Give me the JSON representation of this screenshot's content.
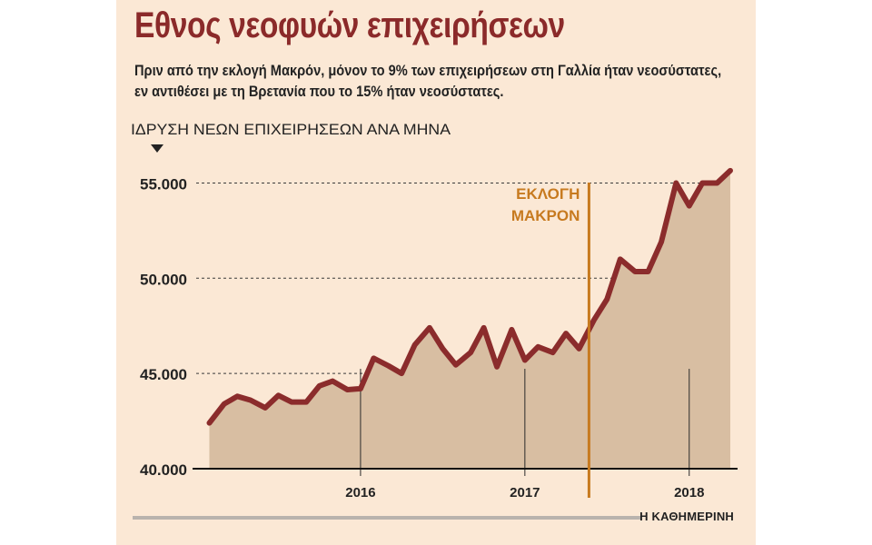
{
  "header": {
    "title": "Εθνος νεοφυών επιχειρήσεων",
    "subtitle": "Πριν από την εκλογή Μακρόν, μόνον το 9% των επιχειρήσεων στη Γαλλία ήταν νεοσύστατες, εν αντιθέσει με τη Βρετανία που το 15% ήταν νεοσύστατες."
  },
  "footer": {
    "source": "Η ΚΑΘΗΜΕΡΙΝΗ"
  },
  "colors": {
    "background": "#fbe8d5",
    "line": "#8b2c2c",
    "area": "#d8bea2",
    "marker": "#c77a1f",
    "title": "#8b2a2a"
  },
  "chart_data": {
    "type": "area",
    "ylabel": "ΙΔΡΥΣΗ ΝΕΩΝ ΕΠΙΧΕΙΡΗΣΕΩΝ ΑΝΑ ΜΗΝΑ",
    "ylim": [
      40000,
      56500
    ],
    "yticks": [
      40000,
      45000,
      50000,
      55000
    ],
    "ytick_labels": [
      "40.000",
      "45.000",
      "50.000",
      "55.000"
    ],
    "xlim": [
      2015.0,
      2018.25
    ],
    "xticks": [
      2016,
      2017,
      2018
    ],
    "xtick_labels": [
      "2016",
      "2017",
      "2018"
    ],
    "grid": "dashed horizontal",
    "x": [
      2015.08,
      2015.17,
      2015.25,
      2015.33,
      2015.42,
      2015.5,
      2015.58,
      2015.67,
      2015.75,
      2015.83,
      2015.92,
      2016.0,
      2016.08,
      2016.17,
      2016.25,
      2016.33,
      2016.42,
      2016.5,
      2016.58,
      2016.67,
      2016.75,
      2016.83,
      2016.92,
      2017.0,
      2017.08,
      2017.17,
      2017.25,
      2017.33,
      2017.42,
      2017.5,
      2017.58,
      2017.67,
      2017.75,
      2017.83,
      2017.92,
      2018.0,
      2018.08,
      2018.17,
      2018.25
    ],
    "values": [
      42400,
      43400,
      43800,
      43600,
      43200,
      43850,
      43500,
      43500,
      44350,
      44600,
      44150,
      44200,
      45800,
      45400,
      45000,
      46500,
      47400,
      46300,
      45450,
      46100,
      47400,
      45350,
      47300,
      45700,
      46400,
      46100,
      47100,
      46300,
      47800,
      48900,
      51000,
      50350,
      50350,
      51900,
      55000,
      53800,
      55000,
      55000,
      55650
    ],
    "annotations": [
      {
        "x": 2017.39,
        "text_lines": [
          "ΕΚΛΟΓΗ",
          "ΜΑΚΡΟΝ"
        ]
      }
    ]
  }
}
